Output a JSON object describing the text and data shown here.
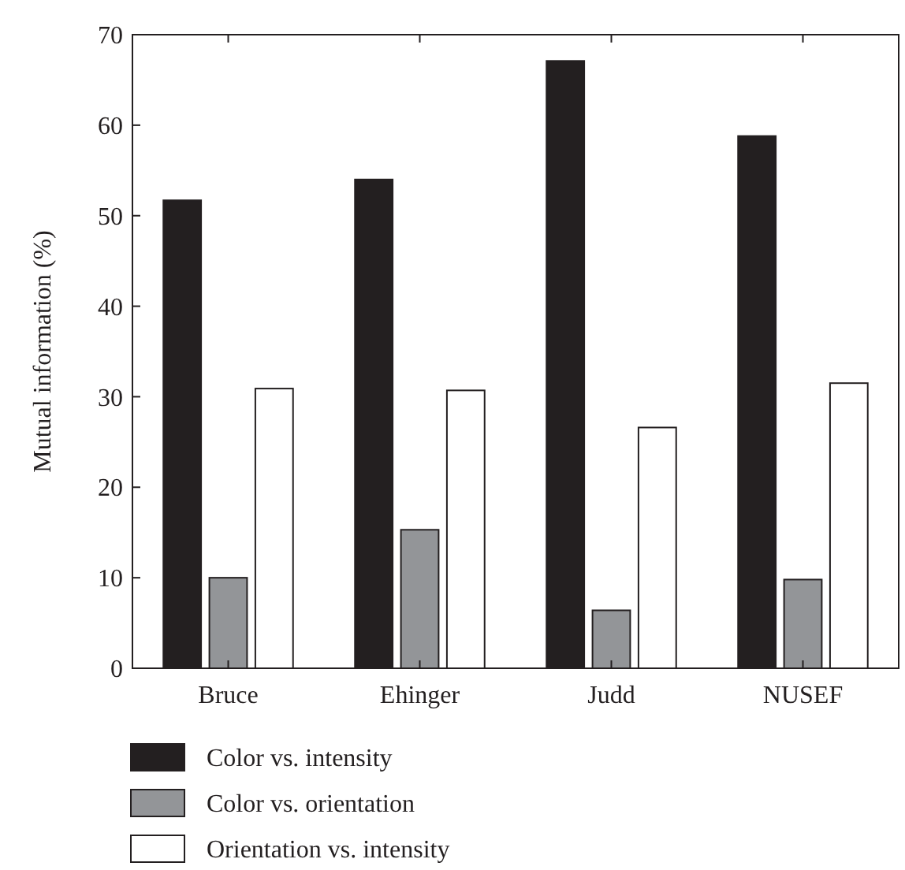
{
  "chart_data": {
    "type": "bar",
    "ylabel": "Mutual information (%)",
    "categories": [
      "Bruce",
      "Ehinger",
      "Judd",
      "NUSEF"
    ],
    "series": [
      {
        "name": "Color vs. intensity",
        "color": "#231f20",
        "values": [
          51.7,
          54,
          67.1,
          58.8
        ]
      },
      {
        "name": "Color vs. orientation",
        "color": "#939598",
        "values": [
          10,
          15.3,
          6.4,
          9.8
        ]
      },
      {
        "name": "Orientation vs. intensity",
        "color": "#ffffff",
        "values": [
          30.9,
          30.7,
          26.6,
          31.5
        ]
      }
    ],
    "ylim": [
      0,
      70
    ],
    "yticks": [
      0,
      10,
      20,
      30,
      40,
      50,
      60,
      70
    ],
    "grid": false,
    "legend": "bottom"
  }
}
